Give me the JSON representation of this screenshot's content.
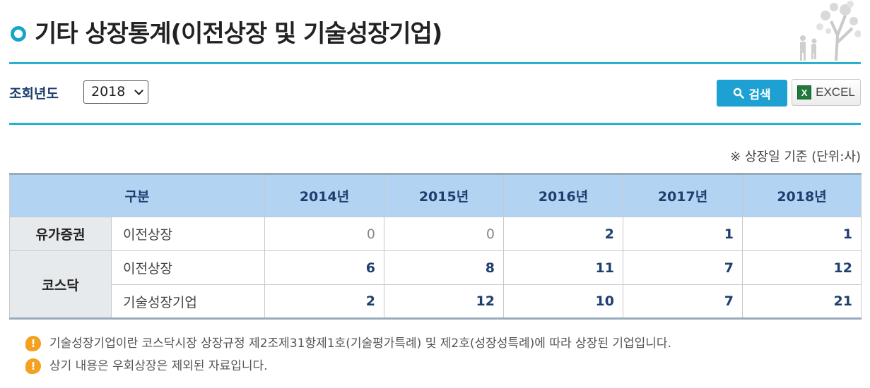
{
  "page": {
    "title": "기타 상장통계(이전상장 및 기술성장기업)"
  },
  "filter": {
    "year_label": "조회년도",
    "year_value": "2018",
    "search_label": "검색",
    "excel_label": "EXCEL"
  },
  "unit_note": "※ 상장일 기준 (단위:사)",
  "table": {
    "headers": [
      "구분",
      "2014년",
      "2015년",
      "2016년",
      "2017년",
      "2018년"
    ],
    "groups": [
      {
        "name": "유가증권",
        "rows": [
          {
            "label": "이전상장",
            "values": [
              "0",
              "0",
              "2",
              "1",
              "1"
            ]
          }
        ]
      },
      {
        "name": "코스닥",
        "rows": [
          {
            "label": "이전상장",
            "values": [
              "6",
              "8",
              "11",
              "7",
              "12"
            ]
          },
          {
            "label": "기술성장기업",
            "values": [
              "2",
              "12",
              "10",
              "7",
              "21"
            ]
          }
        ]
      }
    ]
  },
  "notes": [
    "기술성장기업이란 코스닥시장 상장규정 제2조제31항제1호(기술평가특례) 및 제2호(성장성특례)에 따라 상장된 기업입니다.",
    "상기 내용은 우회상장은 제외된 자료입니다."
  ],
  "icons": {
    "title_bullet": "circle-bullet-icon",
    "search": "search-icon",
    "excel": "excel-icon",
    "note": "exclamation-icon",
    "decoration": "tree-people-decoration"
  },
  "colors": {
    "accent": "#2ab1cf",
    "header_bg": "#b3d3f3",
    "header_text": "#1e3f6e",
    "search_button": "#1da1d3",
    "note_icon": "#f4a021"
  }
}
